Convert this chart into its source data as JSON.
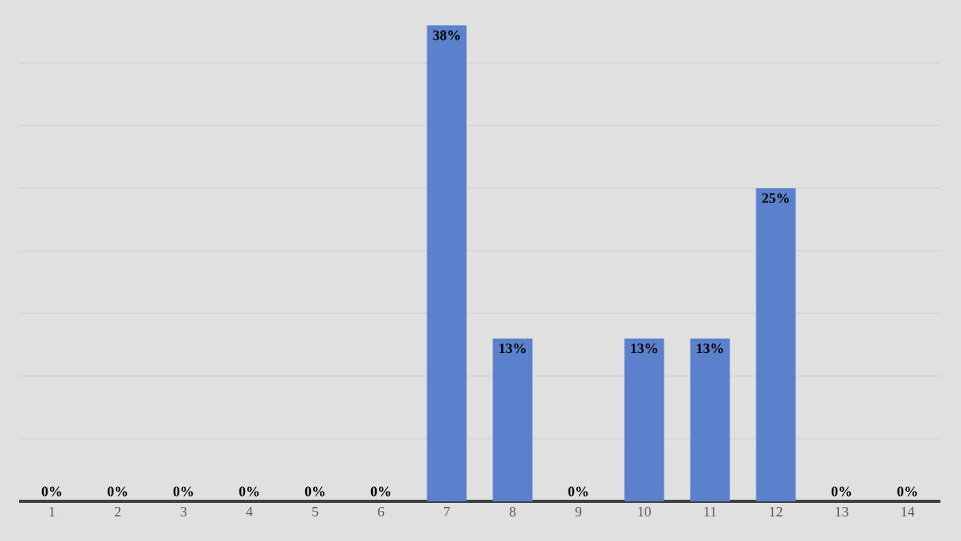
{
  "chart_data": {
    "type": "bar",
    "categories": [
      "1",
      "2",
      "3",
      "4",
      "5",
      "6",
      "7",
      "8",
      "9",
      "10",
      "11",
      "12",
      "13",
      "14"
    ],
    "values": [
      0,
      0,
      0,
      0,
      0,
      0,
      38,
      13,
      0,
      13,
      13,
      25,
      0,
      0
    ],
    "value_labels": [
      "0%",
      "0%",
      "0%",
      "0%",
      "0%",
      "0%",
      "38%",
      "13%",
      "0%",
      "13%",
      "13%",
      "25%",
      "0%",
      "0%"
    ],
    "color": "#5b80cc",
    "grid": "y",
    "tick_labels": "x"
  }
}
